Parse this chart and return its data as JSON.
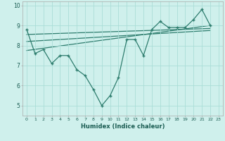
{
  "xlabel": "Humidex (Indice chaleur)",
  "bg_color": "#cff0ec",
  "line_color": "#2e7d6e",
  "grid_color": "#aaddd7",
  "xlim": [
    -0.5,
    23.5
  ],
  "ylim": [
    4.5,
    10.2
  ],
  "yticks": [
    5,
    6,
    7,
    8,
    9,
    10
  ],
  "xticks": [
    0,
    1,
    2,
    3,
    4,
    5,
    6,
    7,
    8,
    9,
    10,
    11,
    12,
    13,
    14,
    15,
    16,
    17,
    18,
    19,
    20,
    21,
    22,
    23
  ],
  "series1_x": [
    0,
    1,
    2,
    3,
    4,
    5,
    6,
    7,
    8,
    9,
    10,
    11,
    12,
    13,
    14,
    15,
    16,
    17,
    18,
    19,
    20,
    21,
    22
  ],
  "series1_y": [
    8.8,
    7.6,
    7.8,
    7.1,
    7.5,
    7.5,
    6.8,
    6.5,
    5.8,
    5.0,
    5.5,
    6.4,
    8.3,
    8.3,
    7.5,
    8.8,
    9.2,
    8.9,
    8.9,
    8.9,
    9.3,
    9.8,
    9.0
  ],
  "series2_x": [
    0,
    22
  ],
  "series2_y": [
    7.75,
    9.0
  ],
  "series3_x": [
    0,
    22
  ],
  "series3_y": [
    8.2,
    8.75
  ],
  "series4_x": [
    0,
    22
  ],
  "series4_y": [
    8.55,
    8.85
  ]
}
